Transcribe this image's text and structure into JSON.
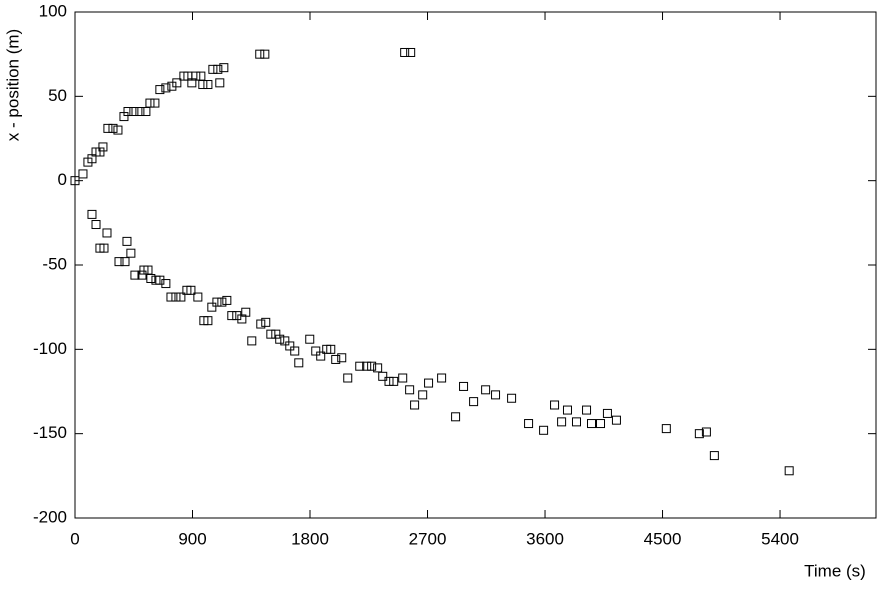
{
  "chart_data": {
    "type": "scatter",
    "x_label": "Time (s)",
    "y_label": "x - position (m)",
    "xlim": [
      0,
      6135
    ],
    "xticks": [
      0,
      900,
      1800,
      2700,
      3600,
      4500,
      5400
    ],
    "ylim": [
      -200,
      100
    ],
    "yticks": [
      100,
      50,
      0,
      -50,
      -100,
      -150,
      -200
    ],
    "grid": false,
    "series": [
      {
        "color": "#000000",
        "x": [
          0,
          61,
          99,
          130,
          161,
          191,
          214,
          252,
          291,
          329,
          375,
          406,
          451,
          497,
          543,
          574,
          612,
          650,
          696,
          742,
          780,
          834,
          865,
          895,
          925,
          964,
          979,
          1018,
          1056,
          1094,
          1109,
          1140,
          1415,
          1454,
          2525,
          2571,
          130,
          161,
          191,
          222,
          245,
          337,
          383,
          398,
          428,
          459,
          513,
          528,
          559,
          581,
          620,
          650,
          696,
          735,
          773,
          811,
          857,
          888,
          941,
          987,
          1018,
          1048,
          1087,
          1125,
          1163,
          1201,
          1239,
          1278,
          1308,
          1354,
          1423,
          1461,
          1500,
          1538,
          1568,
          1607,
          1645,
          1683,
          1714,
          1798,
          1844,
          1882,
          1928,
          1959,
          1997,
          2043,
          2089,
          2181,
          2234,
          2272,
          2318,
          2357,
          2405,
          2441,
          2510,
          2563,
          2601,
          2663,
          2708,
          2808,
          2915,
          2976,
          3053,
          3145,
          3221,
          3344,
          3474,
          3589,
          3673,
          3727,
          3772,
          3841,
          3918,
          3956,
          4025,
          4078,
          4147,
          4529,
          4782,
          4836,
          4897,
          5470
        ],
        "values": [
          0,
          4,
          11,
          13,
          17,
          17,
          20,
          31,
          31,
          30,
          38,
          41,
          41,
          41,
          41,
          46,
          46,
          54,
          55,
          56,
          58,
          62,
          62,
          58,
          62,
          62,
          57,
          57,
          66,
          66,
          58,
          67,
          75,
          75,
          76,
          76,
          -20,
          -26,
          -40,
          -40,
          -31,
          -48,
          -48,
          -36,
          -43,
          -56,
          -56,
          -53,
          -53,
          -58,
          -59,
          -59,
          -61,
          -69,
          -69,
          -69,
          -65,
          -65,
          -69,
          -83,
          -83,
          -75,
          -72,
          -72,
          -71,
          -80,
          -80,
          -82,
          -78,
          -95,
          -85,
          -84,
          -91,
          -91,
          -94,
          -95,
          -98,
          -101,
          -108,
          -94,
          -101,
          -104,
          -100,
          -100,
          -106,
          -105,
          -117,
          -110,
          -110,
          -110,
          -111,
          -116,
          -119,
          -119,
          -117,
          -124,
          -133,
          -127,
          -120,
          -117,
          -140,
          -122,
          -131,
          -124,
          -127,
          -129,
          -144,
          -148,
          -133,
          -143,
          -136,
          -143,
          -136,
          -144,
          -144,
          -138,
          -142,
          -147,
          -150,
          -149,
          -163,
          -172
        ]
      }
    ]
  }
}
